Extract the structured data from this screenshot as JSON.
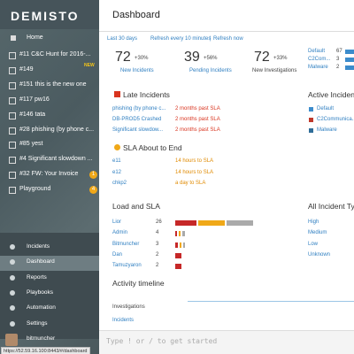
{
  "sidebar": {
    "logo": "DEMISTO",
    "home": "Home",
    "incidents": [
      {
        "label": "#11 C&C Hunt for 2016-..."
      },
      {
        "label": "#149",
        "badge": "NEW"
      },
      {
        "label": "#151 this is the new one"
      },
      {
        "label": "#117 pw16"
      },
      {
        "label": "#146 tata"
      },
      {
        "label": "#28 phishing (by phone c..."
      },
      {
        "label": "#85 yest"
      },
      {
        "label": "#4 Significant slowdown ..."
      },
      {
        "label": "#32 FW: Your Invoice",
        "badge": "1"
      },
      {
        "label": "Playground",
        "badge": "4"
      }
    ],
    "nav": [
      "Incidents",
      "Dashboard",
      "Reports",
      "Playbooks",
      "Automation",
      "Settings"
    ],
    "user": "bitmuncher"
  },
  "status_url": "https://52.59.16.100:8443/#/dashboard",
  "header": {
    "title": "Dashboard"
  },
  "toolbar": {
    "range": "Last 30 days",
    "refresh": "Refresh every 10 minutes",
    "separator": "|",
    "refresh_now": "Refresh now"
  },
  "stats": [
    {
      "value": "72",
      "change": "+30%",
      "label": "New Incidents"
    },
    {
      "value": "39",
      "change": "+56%",
      "label": "Pending Incidents"
    },
    {
      "value": "72",
      "change": "+33%",
      "label": "New Investigations"
    }
  ],
  "type_counts": [
    {
      "name": "Default",
      "count": "67"
    },
    {
      "name": "C2Com...",
      "count": "3"
    },
    {
      "name": "Malware",
      "count": "2"
    }
  ],
  "late": {
    "title": "Late Incidents",
    "rows": [
      [
        "phishing (by phone c...",
        "2 months past SLA"
      ],
      [
        "DB-PROD5 Crashed",
        "2 months past SLA"
      ],
      [
        "Significant slowdow...",
        "2 months past SLA"
      ]
    ]
  },
  "sla": {
    "title": "SLA About to End",
    "rows": [
      [
        "e11",
        "14 hours to SLA"
      ],
      [
        "e12",
        "14 hours to SLA"
      ],
      [
        "chkp2",
        "a day to SLA"
      ]
    ]
  },
  "active": {
    "title": "Active Incident",
    "legend": [
      "Default",
      "C2Communica...",
      "Malware"
    ]
  },
  "load": {
    "title": "Load and SLA",
    "rows": [
      [
        "Lior",
        "26"
      ],
      [
        "Admin",
        "4"
      ],
      [
        "Bitmuncher",
        "3"
      ],
      [
        "Dan",
        "2"
      ],
      [
        "Tamuzyaron",
        "2"
      ]
    ]
  },
  "all_types": {
    "title": "All Incident Typ",
    "rows": [
      "High",
      "Medium",
      "Low",
      "Unknown"
    ]
  },
  "timeline": {
    "title": "Activity timeline",
    "rows": [
      "Investigations",
      "Incidents"
    ]
  },
  "chat": {
    "placeholder": "Type ! or / to get started"
  }
}
